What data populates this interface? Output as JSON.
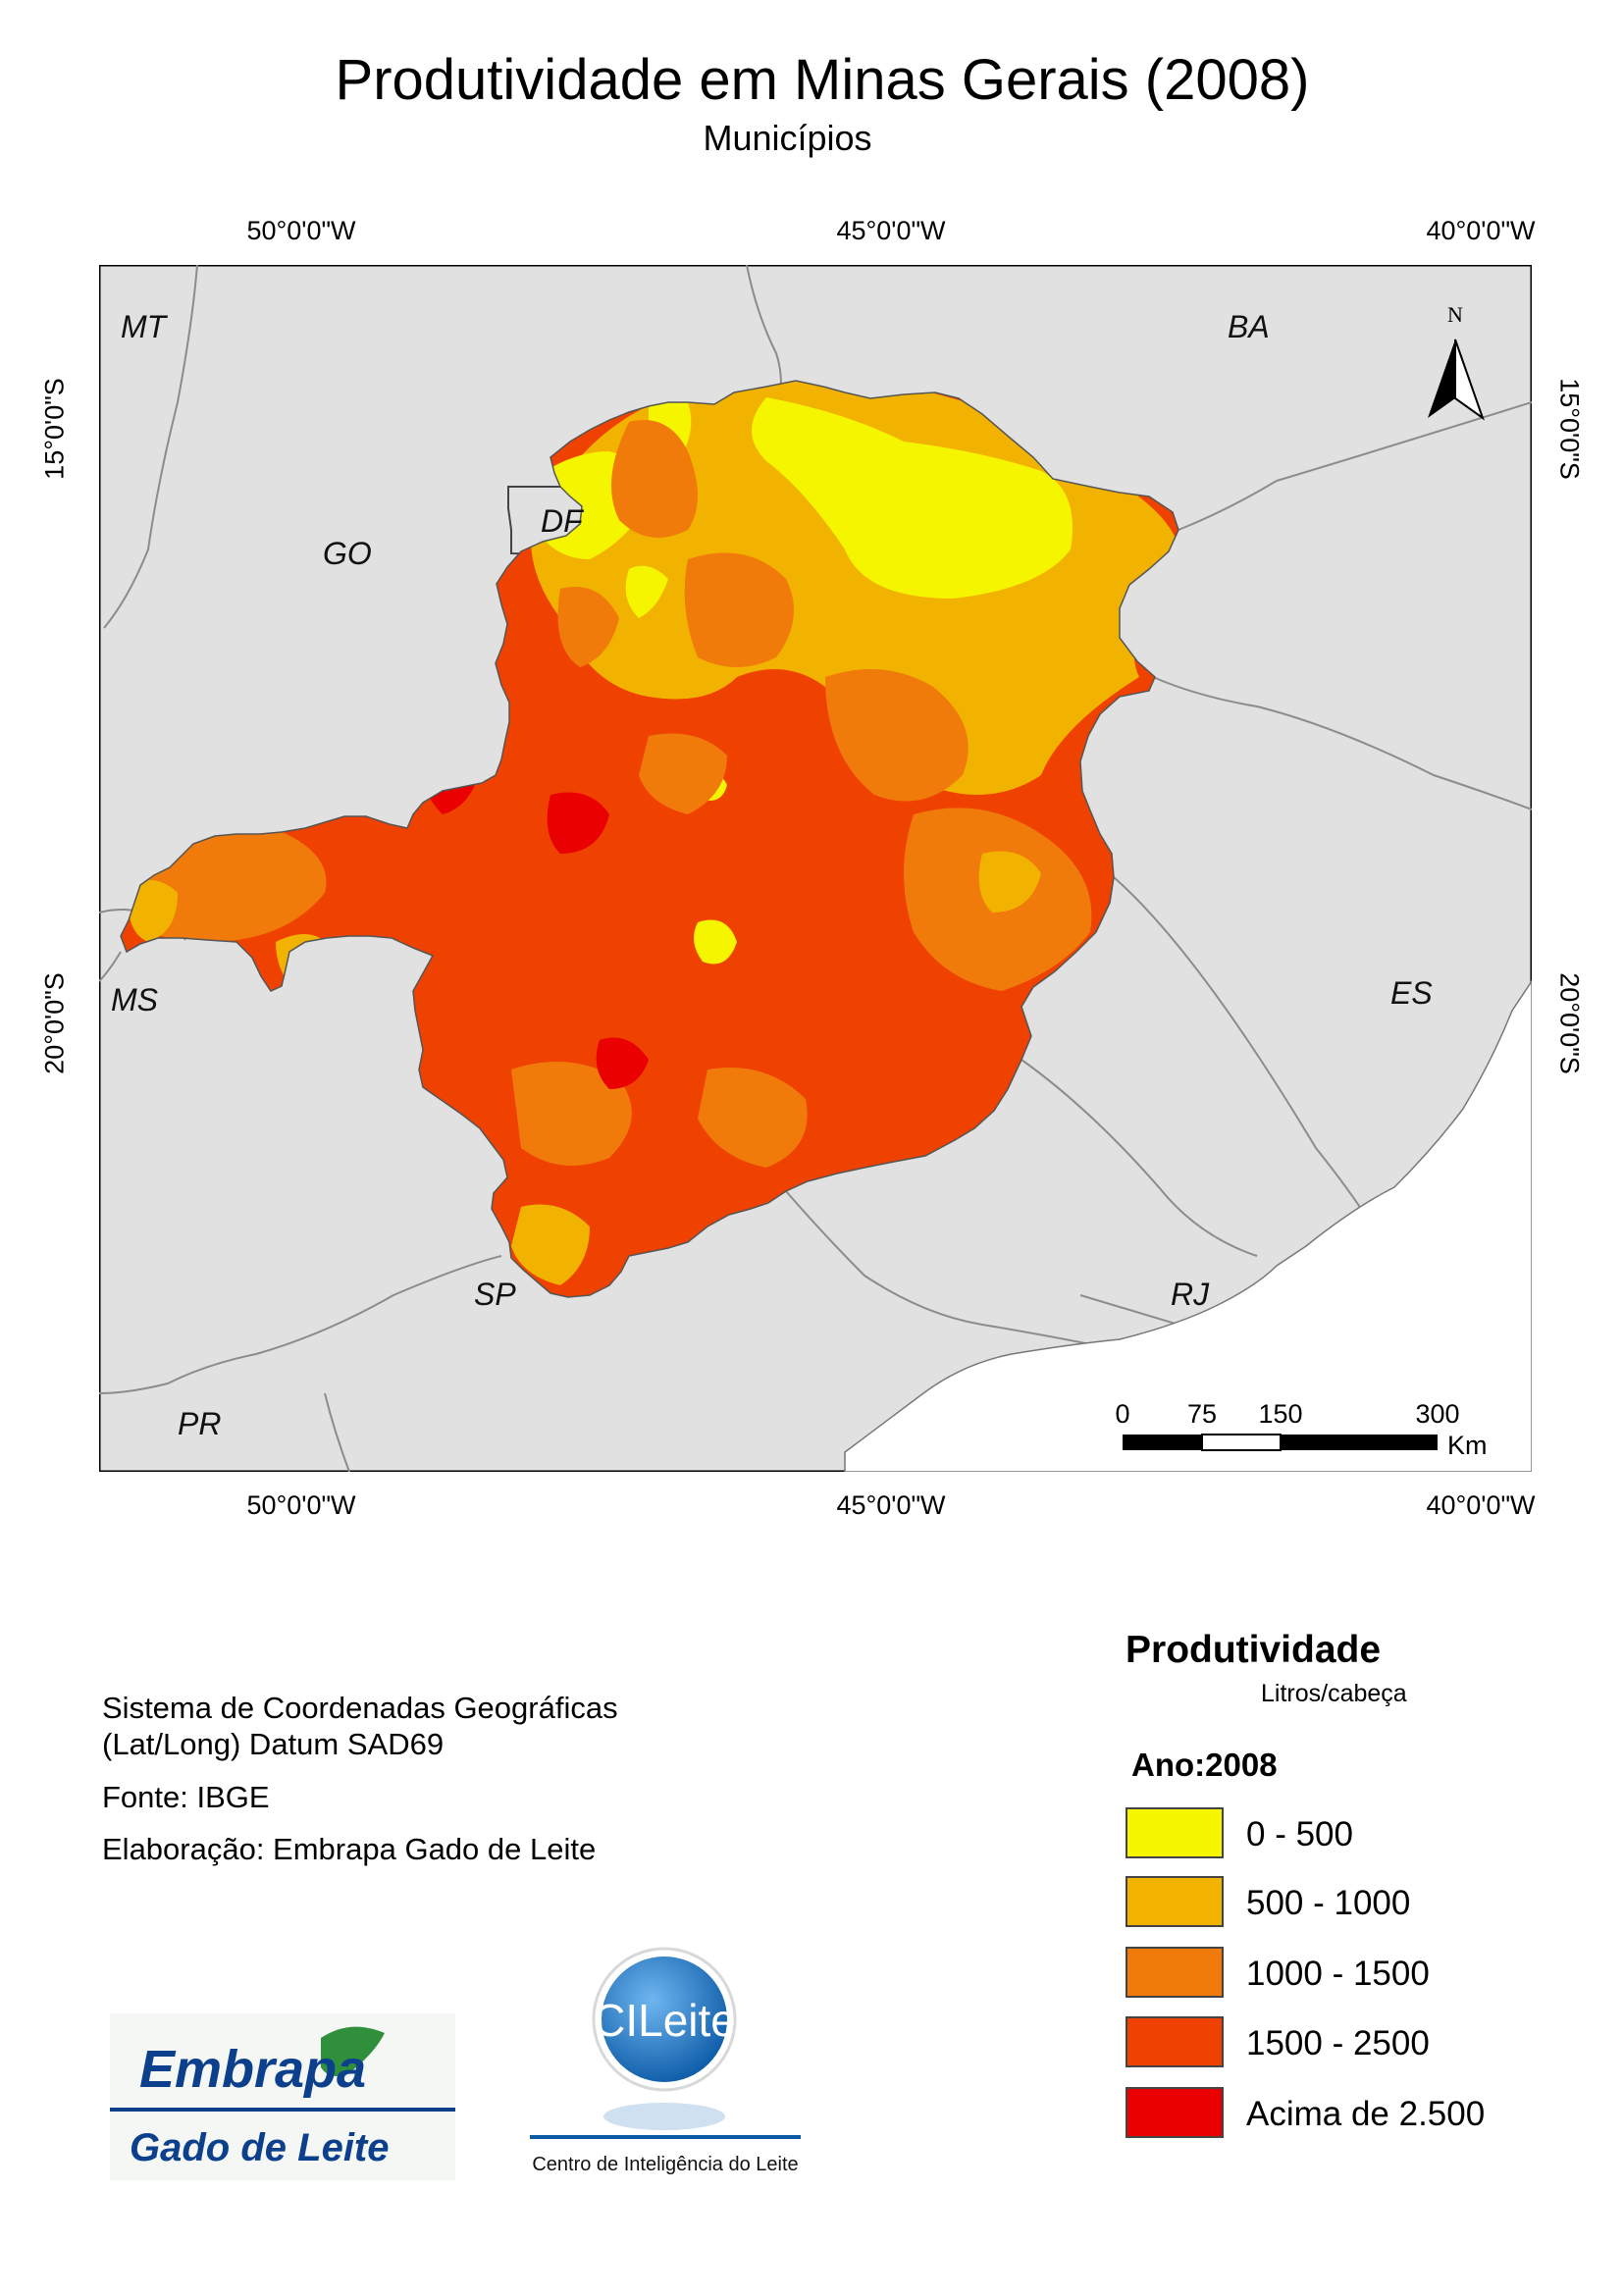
{
  "title": "Produtividade em Minas Gerais (2008)",
  "subtitle": "Municípios",
  "map": {
    "type": "choropleth",
    "region": "Minas Gerais",
    "lon_labels": [
      "50°0'0\"W",
      "45°0'0\"W",
      "40°0'0\"W"
    ],
    "lat_labels": [
      "15°0'0\"S",
      "20°0'0\"S"
    ],
    "state_labels": [
      "MT",
      "BA",
      "DF",
      "GO",
      "MS",
      "ES",
      "SP",
      "RJ",
      "PR"
    ],
    "north_label": "N",
    "scale_bar": {
      "ticks": [
        "0",
        "75",
        "150",
        "300"
      ],
      "unit": "Km"
    },
    "background_color": "#e1e1e1",
    "border_color": "#8c8c8c"
  },
  "info": {
    "line1": "Sistema de Coordenadas Geográficas",
    "line2": "(Lat/Long) Datum SAD69",
    "source": "Fonte: IBGE",
    "author": "Elaboração: Embrapa Gado de Leite"
  },
  "legend": {
    "title": "Produtividade",
    "unit": "Litros/cabeça",
    "year": "Ano:2008",
    "classes": [
      {
        "label": "0 - 500",
        "color": "#f5f500"
      },
      {
        "label": "500 - 1000",
        "color": "#f2b300"
      },
      {
        "label": "1000 - 1500",
        "color": "#f07b0a"
      },
      {
        "label": "1500 - 2500",
        "color": "#ef4100"
      },
      {
        "label": "Acima de 2.500",
        "color": "#ea0000"
      }
    ]
  },
  "logos": {
    "embrapa_text": "Embrapa",
    "embrapa_sub": "Gado de Leite",
    "cileite_text": "CILeite",
    "cileite_caption": "Centro de Inteligência do Leite"
  }
}
